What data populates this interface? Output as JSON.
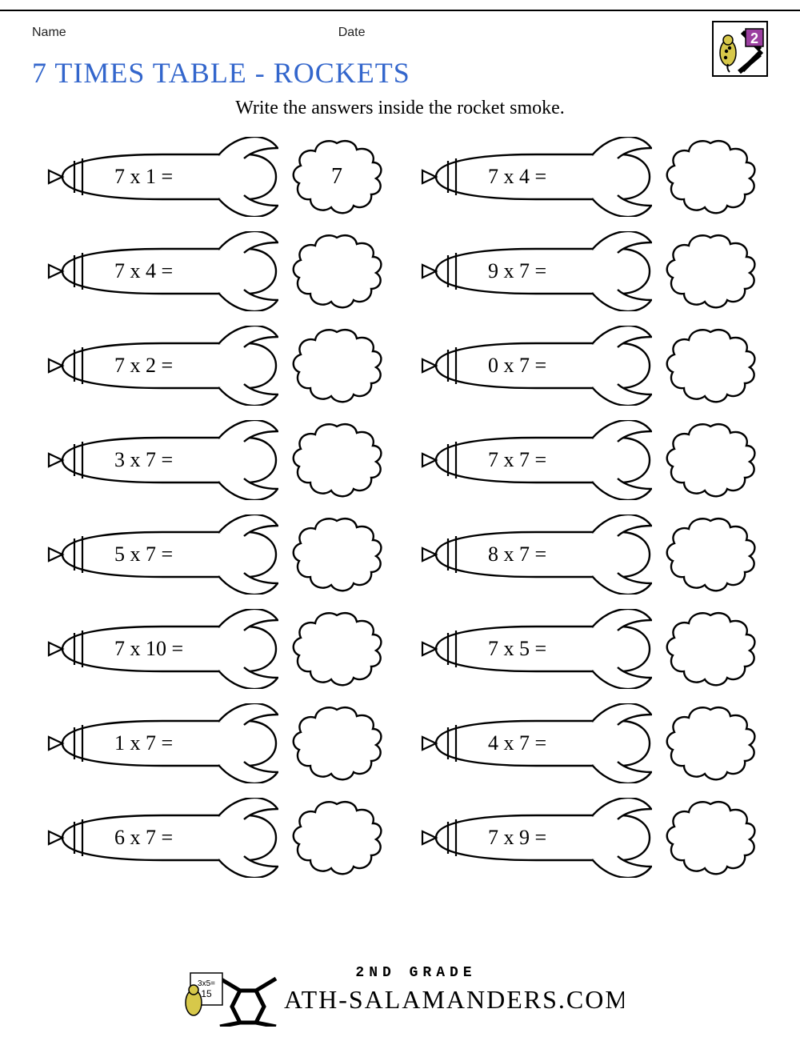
{
  "header": {
    "name_label": "Name",
    "date_label": "Date",
    "grade_badge": "2"
  },
  "title": "7 TIMES TABLE - ROCKETS",
  "instructions": "Write the answers inside the rocket smoke.",
  "colors": {
    "title_color": "#3366cc",
    "stroke": "#000000",
    "badge_number_bg": "#9b3fa0",
    "badge_salamander": "#d7c84a",
    "background": "#ffffff"
  },
  "columns": [
    [
      {
        "equation": "7 x 1 =",
        "answer": "7"
      },
      {
        "equation": "7 x 4 =",
        "answer": ""
      },
      {
        "equation": "7 x 2 =",
        "answer": ""
      },
      {
        "equation": "3 x 7 =",
        "answer": ""
      },
      {
        "equation": "5 x 7 =",
        "answer": ""
      },
      {
        "equation": "7 x 10 =",
        "answer": ""
      },
      {
        "equation": "1 x 7 =",
        "answer": ""
      },
      {
        "equation": "6 x 7 =",
        "answer": ""
      }
    ],
    [
      {
        "equation": "7 x 4 =",
        "answer": ""
      },
      {
        "equation": "9 x 7 =",
        "answer": ""
      },
      {
        "equation": "0 x 7 =",
        "answer": ""
      },
      {
        "equation": "7 x 7 =",
        "answer": ""
      },
      {
        "equation": "8 x 7 =",
        "answer": ""
      },
      {
        "equation": "7 x 5 =",
        "answer": ""
      },
      {
        "equation": "4 x 7 =",
        "answer": ""
      },
      {
        "equation": "7 x 9 =",
        "answer": ""
      }
    ]
  ],
  "footer": {
    "top_line": "2ND GRADE",
    "main_line": "ATH-SALAMANDERS.COM",
    "card_text": "3x5=\n15"
  }
}
